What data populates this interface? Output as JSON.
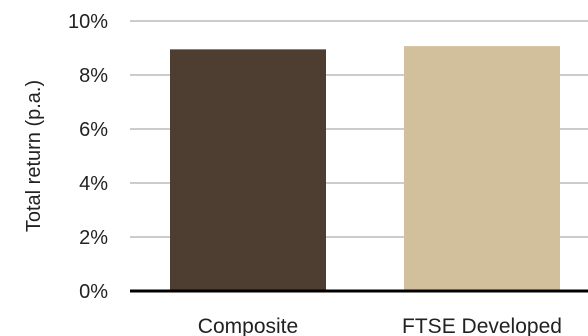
{
  "chart_data": {
    "type": "bar",
    "title": "",
    "xlabel": "",
    "ylabel": "Total return (p.a.)",
    "categories": [
      "Composite",
      "FTSE Developed"
    ],
    "values": [
      8.95,
      9.07
    ],
    "ylim": [
      0,
      10
    ],
    "yticks": [
      0,
      2,
      4,
      6,
      8,
      10
    ],
    "ytick_labels": [
      "0%",
      "2%",
      "4%",
      "6%",
      "8%",
      "10%"
    ],
    "colors": [
      "#4e3d31",
      "#d2bf9c"
    ],
    "grid": true,
    "legend": "none"
  }
}
